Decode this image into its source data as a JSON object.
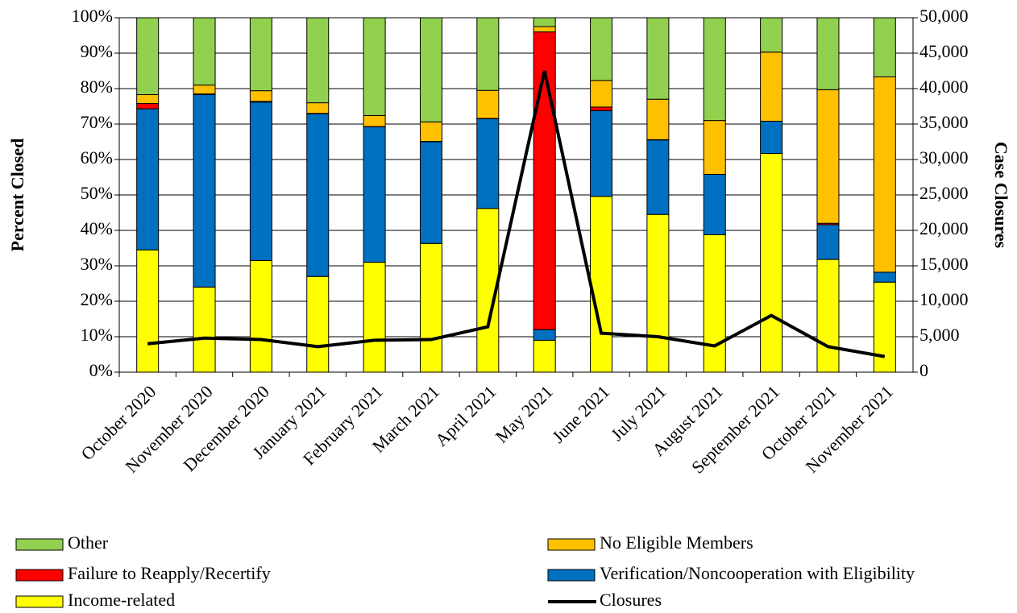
{
  "chart_data": {
    "type": "stacked_bar_line",
    "y_label": "Percent Closed",
    "y2_label": "Case Closures",
    "categories": [
      "October 2020",
      "November 2020",
      "December 2020",
      "January 2021",
      "February 2021",
      "March 2021",
      "April 2021",
      "May 2021",
      "June 2021",
      "July 2021",
      "August 2021",
      "September 2021",
      "October 2021",
      "November 2021"
    ],
    "series": [
      {
        "name": "Income-related",
        "color": "#ffff00",
        "values": [
          34.5,
          24,
          31.5,
          27,
          31,
          36.3,
          46.2,
          9,
          49.6,
          44.5,
          38.8,
          61.7,
          31.8,
          25.4
        ]
      },
      {
        "name": "Verification/Noncooperation with Eligibility",
        "color": "#0070c0",
        "values": [
          39.8,
          54.3,
          44.7,
          45.9,
          38.2,
          28.7,
          25.3,
          3,
          24.2,
          21,
          17,
          9.1,
          9.8,
          2.8
        ]
      },
      {
        "name": "Failure to Reapply/Recertify",
        "color": "#ff0000",
        "values": [
          1.5,
          0.2,
          0.2,
          0.1,
          0.1,
          0.1,
          0.1,
          84,
          1,
          0.1,
          0,
          0,
          0.4,
          0
        ]
      },
      {
        "name": "No Eligible Members",
        "color": "#ffc000",
        "values": [
          2.5,
          2.5,
          3,
          3,
          3.1,
          5.5,
          7.9,
          1.5,
          7.5,
          11.4,
          15.2,
          19.5,
          37.7,
          55.1
        ]
      },
      {
        "name": "Other",
        "color": "#92d050",
        "values": [
          21.7,
          19,
          20.6,
          24,
          27.6,
          29.4,
          20.5,
          2.5,
          17.7,
          23,
          29,
          9.7,
          20.3,
          16.7
        ]
      },
      {
        "name": "Closures",
        "color": "#000000",
        "axis": "y2",
        "values": [
          4000,
          4800,
          4600,
          3600,
          4500,
          4600,
          6400,
          42500,
          5500,
          5000,
          3700,
          8000,
          3600,
          2200
        ]
      }
    ],
    "ylim": [
      0,
      100
    ],
    "yticks": [
      {
        "value": 0,
        "label": "0%"
      },
      {
        "value": 10,
        "label": "10%"
      },
      {
        "value": 20,
        "label": "20%"
      },
      {
        "value": 30,
        "label": "30%"
      },
      {
        "value": 40,
        "label": "40%"
      },
      {
        "value": 50,
        "label": "50%"
      },
      {
        "value": 60,
        "label": "60%"
      },
      {
        "value": 70,
        "label": "70%"
      },
      {
        "value": 80,
        "label": "80%"
      },
      {
        "value": 90,
        "label": "90%"
      },
      {
        "value": 100,
        "label": "100%"
      }
    ],
    "y2lim": [
      0,
      50000
    ],
    "y2ticks": [
      0,
      {
        "value": 5000,
        "label": "5,000"
      },
      {
        "value": 10000,
        "label": "10,000"
      },
      {
        "value": 15000,
        "label": "15,000"
      },
      {
        "value": 20000,
        "label": "20,000"
      },
      {
        "value": 25000,
        "label": "25,000"
      },
      {
        "value": 30000,
        "label": "30,000"
      },
      {
        "value": 35000,
        "label": "35,000"
      },
      {
        "value": 40000,
        "label": "40,000"
      },
      {
        "value": 45000,
        "label": "45,000"
      },
      {
        "value": 50000,
        "label": "50,000"
      }
    ],
    "grid": true
  }
}
